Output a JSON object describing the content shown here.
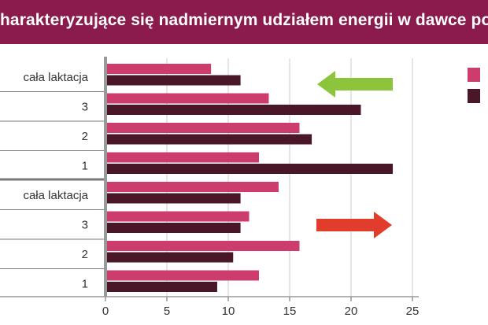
{
  "header": {
    "title": "harakteryzujące się nadmiernym udziałem energii w dawce poka"
  },
  "colors": {
    "banner": "#8a1b4c",
    "series_pink": "#cc3d6e",
    "series_dark": "#4a1729",
    "arrow_green": "#8cc43c",
    "arrow_red": "#e23d2c",
    "gridline": "#cccccc",
    "axis": "#999999"
  },
  "icons": {
    "top_arrow": "arrow-left-icon",
    "bottom_arrow": "arrow-right-icon"
  },
  "chart_data": {
    "type": "bar",
    "orientation": "horizontal",
    "xlim": [
      0,
      25
    ],
    "x_ticks": [
      "0",
      "5",
      "10",
      "15",
      "20",
      "25"
    ],
    "grid": true,
    "legend": "top-right",
    "groups": [
      {
        "categories": [
          "cała laktacja",
          "3",
          "2",
          "1"
        ],
        "series": [
          {
            "values": [
              8.6,
              13.3,
              15.8,
              12.5
            ]
          },
          {
            "values": [
              11.0,
              20.8,
              16.8,
              23.4
            ]
          }
        ],
        "arrow": "left"
      },
      {
        "categories": [
          "cała laktacja",
          "3",
          "2",
          "1"
        ],
        "series": [
          {
            "values": [
              14.1,
              11.7,
              15.8,
              12.5
            ]
          },
          {
            "values": [
              11.0,
              11.0,
              10.4,
              9.1
            ]
          }
        ],
        "arrow": "right"
      }
    ]
  }
}
